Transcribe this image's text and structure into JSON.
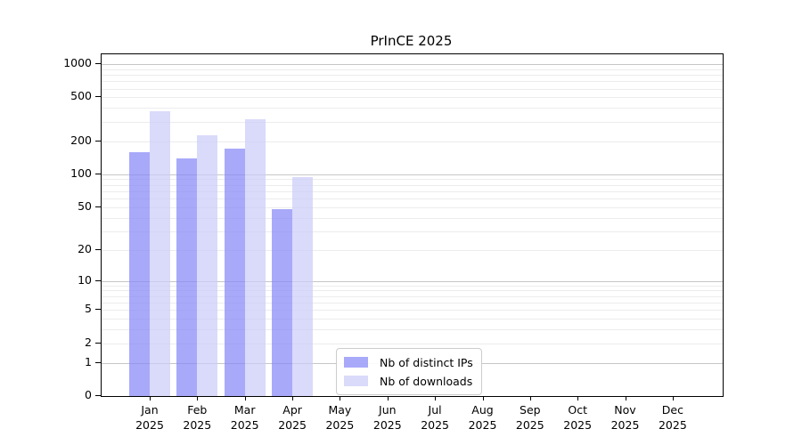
{
  "chart_data": {
    "type": "bar",
    "title": "PrInCE 2025",
    "xlabel": "",
    "ylabel": "",
    "scale": "log1p",
    "grid": true,
    "legend_position": "lower center",
    "y_ticks": [
      0,
      1,
      2,
      5,
      10,
      20,
      50,
      100,
      200,
      500,
      1000
    ],
    "ylim": [
      0,
      1200
    ],
    "categories": [
      {
        "month": "Jan",
        "year": "2025"
      },
      {
        "month": "Feb",
        "year": "2025"
      },
      {
        "month": "Mar",
        "year": "2025"
      },
      {
        "month": "Apr",
        "year": "2025"
      },
      {
        "month": "May",
        "year": "2025"
      },
      {
        "month": "Jun",
        "year": "2025"
      },
      {
        "month": "Jul",
        "year": "2025"
      },
      {
        "month": "Aug",
        "year": "2025"
      },
      {
        "month": "Sep",
        "year": "2025"
      },
      {
        "month": "Oct",
        "year": "2025"
      },
      {
        "month": "Nov",
        "year": "2025"
      },
      {
        "month": "Dec",
        "year": "2025"
      }
    ],
    "series": [
      {
        "name": "Nb of distinct IPs",
        "key": "distinct-ips",
        "color": "rgba(136,136,248,0.72)",
        "values": [
          160,
          140,
          170,
          48,
          0,
          0,
          0,
          0,
          0,
          0,
          0,
          0
        ]
      },
      {
        "name": "Nb of downloads",
        "key": "downloads",
        "color": "rgba(204,204,248,0.72)",
        "values": [
          375,
          225,
          315,
          95,
          0,
          0,
          0,
          0,
          0,
          0,
          0,
          0
        ]
      }
    ]
  },
  "colors": {
    "grid_major": "#c6c6c6",
    "grid_minor": "#ececec",
    "axis": "#000000"
  }
}
